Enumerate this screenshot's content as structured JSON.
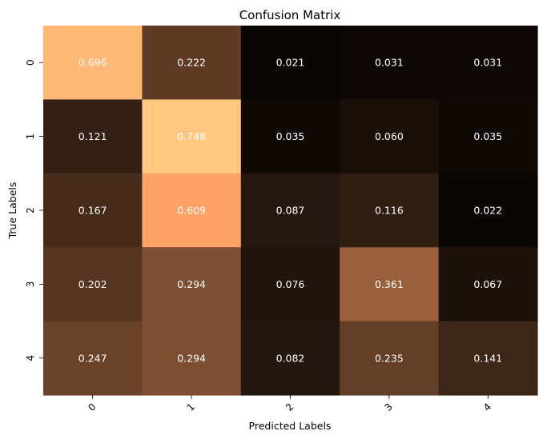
{
  "chart_data": {
    "type": "heatmap",
    "title": "Confusion Matrix",
    "xlabel": "Predicted Labels",
    "ylabel": "True Labels",
    "x_categories": [
      "0",
      "1",
      "2",
      "3",
      "4"
    ],
    "y_categories": [
      "0",
      "1",
      "2",
      "3",
      "4"
    ],
    "values": [
      [
        0.696,
        0.222,
        0.021,
        0.031,
        0.031
      ],
      [
        0.121,
        0.748,
        0.035,
        0.06,
        0.035
      ],
      [
        0.167,
        0.609,
        0.087,
        0.116,
        0.022
      ],
      [
        0.202,
        0.294,
        0.076,
        0.361,
        0.067
      ],
      [
        0.247,
        0.294,
        0.082,
        0.235,
        0.141
      ]
    ],
    "value_labels": [
      [
        "0.696",
        "0.222",
        "0.021",
        "0.031",
        "0.031"
      ],
      [
        "0.121",
        "0.748",
        "0.035",
        "0.060",
        "0.035"
      ],
      [
        "0.167",
        "0.609",
        "0.087",
        "0.116",
        "0.022"
      ],
      [
        "0.202",
        "0.294",
        "0.076",
        "0.361",
        "0.067"
      ],
      [
        "0.247",
        "0.294",
        "0.082",
        "0.235",
        "0.141"
      ]
    ],
    "colormap": "copper",
    "vmin": 0.0,
    "vmax": 0.748,
    "colorbar": false,
    "annotation_color": "#ffffff",
    "grid": false
  }
}
